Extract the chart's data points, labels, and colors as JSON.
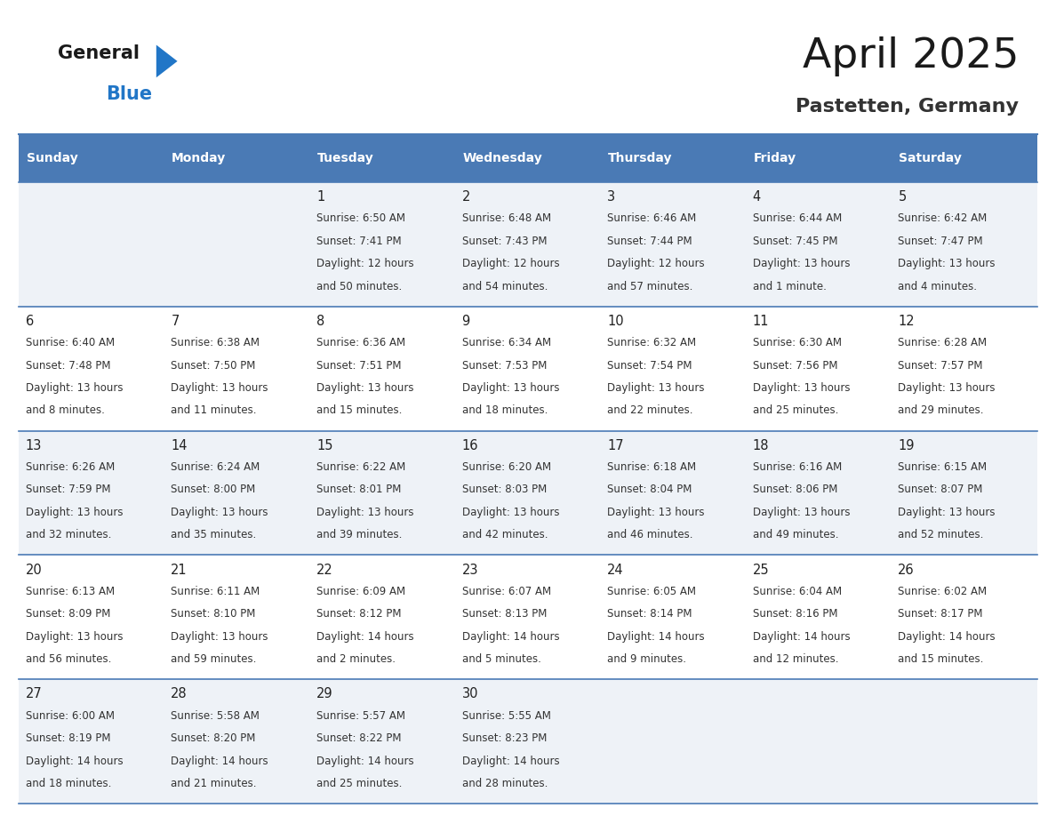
{
  "title": "April 2025",
  "subtitle": "Pastetten, Germany",
  "header_bg": "#4a7ab5",
  "header_text": "#ffffff",
  "row_bg_odd": "#eef2f7",
  "row_bg_even": "#ffffff",
  "day_names": [
    "Sunday",
    "Monday",
    "Tuesday",
    "Wednesday",
    "Thursday",
    "Friday",
    "Saturday"
  ],
  "cell_text_color": "#333333",
  "day_number_color": "#222222",
  "logo_blue_color": "#2176c7",
  "divider_color": "#4a7ab5",
  "weeks": [
    [
      {
        "day": "",
        "sunrise": "",
        "sunset": "",
        "daylight1": "",
        "daylight2": ""
      },
      {
        "day": "",
        "sunrise": "",
        "sunset": "",
        "daylight1": "",
        "daylight2": ""
      },
      {
        "day": "1",
        "sunrise": "Sunrise: 6:50 AM",
        "sunset": "Sunset: 7:41 PM",
        "daylight1": "Daylight: 12 hours",
        "daylight2": "and 50 minutes."
      },
      {
        "day": "2",
        "sunrise": "Sunrise: 6:48 AM",
        "sunset": "Sunset: 7:43 PM",
        "daylight1": "Daylight: 12 hours",
        "daylight2": "and 54 minutes."
      },
      {
        "day": "3",
        "sunrise": "Sunrise: 6:46 AM",
        "sunset": "Sunset: 7:44 PM",
        "daylight1": "Daylight: 12 hours",
        "daylight2": "and 57 minutes."
      },
      {
        "day": "4",
        "sunrise": "Sunrise: 6:44 AM",
        "sunset": "Sunset: 7:45 PM",
        "daylight1": "Daylight: 13 hours",
        "daylight2": "and 1 minute."
      },
      {
        "day": "5",
        "sunrise": "Sunrise: 6:42 AM",
        "sunset": "Sunset: 7:47 PM",
        "daylight1": "Daylight: 13 hours",
        "daylight2": "and 4 minutes."
      }
    ],
    [
      {
        "day": "6",
        "sunrise": "Sunrise: 6:40 AM",
        "sunset": "Sunset: 7:48 PM",
        "daylight1": "Daylight: 13 hours",
        "daylight2": "and 8 minutes."
      },
      {
        "day": "7",
        "sunrise": "Sunrise: 6:38 AM",
        "sunset": "Sunset: 7:50 PM",
        "daylight1": "Daylight: 13 hours",
        "daylight2": "and 11 minutes."
      },
      {
        "day": "8",
        "sunrise": "Sunrise: 6:36 AM",
        "sunset": "Sunset: 7:51 PM",
        "daylight1": "Daylight: 13 hours",
        "daylight2": "and 15 minutes."
      },
      {
        "day": "9",
        "sunrise": "Sunrise: 6:34 AM",
        "sunset": "Sunset: 7:53 PM",
        "daylight1": "Daylight: 13 hours",
        "daylight2": "and 18 minutes."
      },
      {
        "day": "10",
        "sunrise": "Sunrise: 6:32 AM",
        "sunset": "Sunset: 7:54 PM",
        "daylight1": "Daylight: 13 hours",
        "daylight2": "and 22 minutes."
      },
      {
        "day": "11",
        "sunrise": "Sunrise: 6:30 AM",
        "sunset": "Sunset: 7:56 PM",
        "daylight1": "Daylight: 13 hours",
        "daylight2": "and 25 minutes."
      },
      {
        "day": "12",
        "sunrise": "Sunrise: 6:28 AM",
        "sunset": "Sunset: 7:57 PM",
        "daylight1": "Daylight: 13 hours",
        "daylight2": "and 29 minutes."
      }
    ],
    [
      {
        "day": "13",
        "sunrise": "Sunrise: 6:26 AM",
        "sunset": "Sunset: 7:59 PM",
        "daylight1": "Daylight: 13 hours",
        "daylight2": "and 32 minutes."
      },
      {
        "day": "14",
        "sunrise": "Sunrise: 6:24 AM",
        "sunset": "Sunset: 8:00 PM",
        "daylight1": "Daylight: 13 hours",
        "daylight2": "and 35 minutes."
      },
      {
        "day": "15",
        "sunrise": "Sunrise: 6:22 AM",
        "sunset": "Sunset: 8:01 PM",
        "daylight1": "Daylight: 13 hours",
        "daylight2": "and 39 minutes."
      },
      {
        "day": "16",
        "sunrise": "Sunrise: 6:20 AM",
        "sunset": "Sunset: 8:03 PM",
        "daylight1": "Daylight: 13 hours",
        "daylight2": "and 42 minutes."
      },
      {
        "day": "17",
        "sunrise": "Sunrise: 6:18 AM",
        "sunset": "Sunset: 8:04 PM",
        "daylight1": "Daylight: 13 hours",
        "daylight2": "and 46 minutes."
      },
      {
        "day": "18",
        "sunrise": "Sunrise: 6:16 AM",
        "sunset": "Sunset: 8:06 PM",
        "daylight1": "Daylight: 13 hours",
        "daylight2": "and 49 minutes."
      },
      {
        "day": "19",
        "sunrise": "Sunrise: 6:15 AM",
        "sunset": "Sunset: 8:07 PM",
        "daylight1": "Daylight: 13 hours",
        "daylight2": "and 52 minutes."
      }
    ],
    [
      {
        "day": "20",
        "sunrise": "Sunrise: 6:13 AM",
        "sunset": "Sunset: 8:09 PM",
        "daylight1": "Daylight: 13 hours",
        "daylight2": "and 56 minutes."
      },
      {
        "day": "21",
        "sunrise": "Sunrise: 6:11 AM",
        "sunset": "Sunset: 8:10 PM",
        "daylight1": "Daylight: 13 hours",
        "daylight2": "and 59 minutes."
      },
      {
        "day": "22",
        "sunrise": "Sunrise: 6:09 AM",
        "sunset": "Sunset: 8:12 PM",
        "daylight1": "Daylight: 14 hours",
        "daylight2": "and 2 minutes."
      },
      {
        "day": "23",
        "sunrise": "Sunrise: 6:07 AM",
        "sunset": "Sunset: 8:13 PM",
        "daylight1": "Daylight: 14 hours",
        "daylight2": "and 5 minutes."
      },
      {
        "day": "24",
        "sunrise": "Sunrise: 6:05 AM",
        "sunset": "Sunset: 8:14 PM",
        "daylight1": "Daylight: 14 hours",
        "daylight2": "and 9 minutes."
      },
      {
        "day": "25",
        "sunrise": "Sunrise: 6:04 AM",
        "sunset": "Sunset: 8:16 PM",
        "daylight1": "Daylight: 14 hours",
        "daylight2": "and 12 minutes."
      },
      {
        "day": "26",
        "sunrise": "Sunrise: 6:02 AM",
        "sunset": "Sunset: 8:17 PM",
        "daylight1": "Daylight: 14 hours",
        "daylight2": "and 15 minutes."
      }
    ],
    [
      {
        "day": "27",
        "sunrise": "Sunrise: 6:00 AM",
        "sunset": "Sunset: 8:19 PM",
        "daylight1": "Daylight: 14 hours",
        "daylight2": "and 18 minutes."
      },
      {
        "day": "28",
        "sunrise": "Sunrise: 5:58 AM",
        "sunset": "Sunset: 8:20 PM",
        "daylight1": "Daylight: 14 hours",
        "daylight2": "and 21 minutes."
      },
      {
        "day": "29",
        "sunrise": "Sunrise: 5:57 AM",
        "sunset": "Sunset: 8:22 PM",
        "daylight1": "Daylight: 14 hours",
        "daylight2": "and 25 minutes."
      },
      {
        "day": "30",
        "sunrise": "Sunrise: 5:55 AM",
        "sunset": "Sunset: 8:23 PM",
        "daylight1": "Daylight: 14 hours",
        "daylight2": "and 28 minutes."
      },
      {
        "day": "",
        "sunrise": "",
        "sunset": "",
        "daylight1": "",
        "daylight2": ""
      },
      {
        "day": "",
        "sunrise": "",
        "sunset": "",
        "daylight1": "",
        "daylight2": ""
      },
      {
        "day": "",
        "sunrise": "",
        "sunset": "",
        "daylight1": "",
        "daylight2": ""
      }
    ]
  ]
}
